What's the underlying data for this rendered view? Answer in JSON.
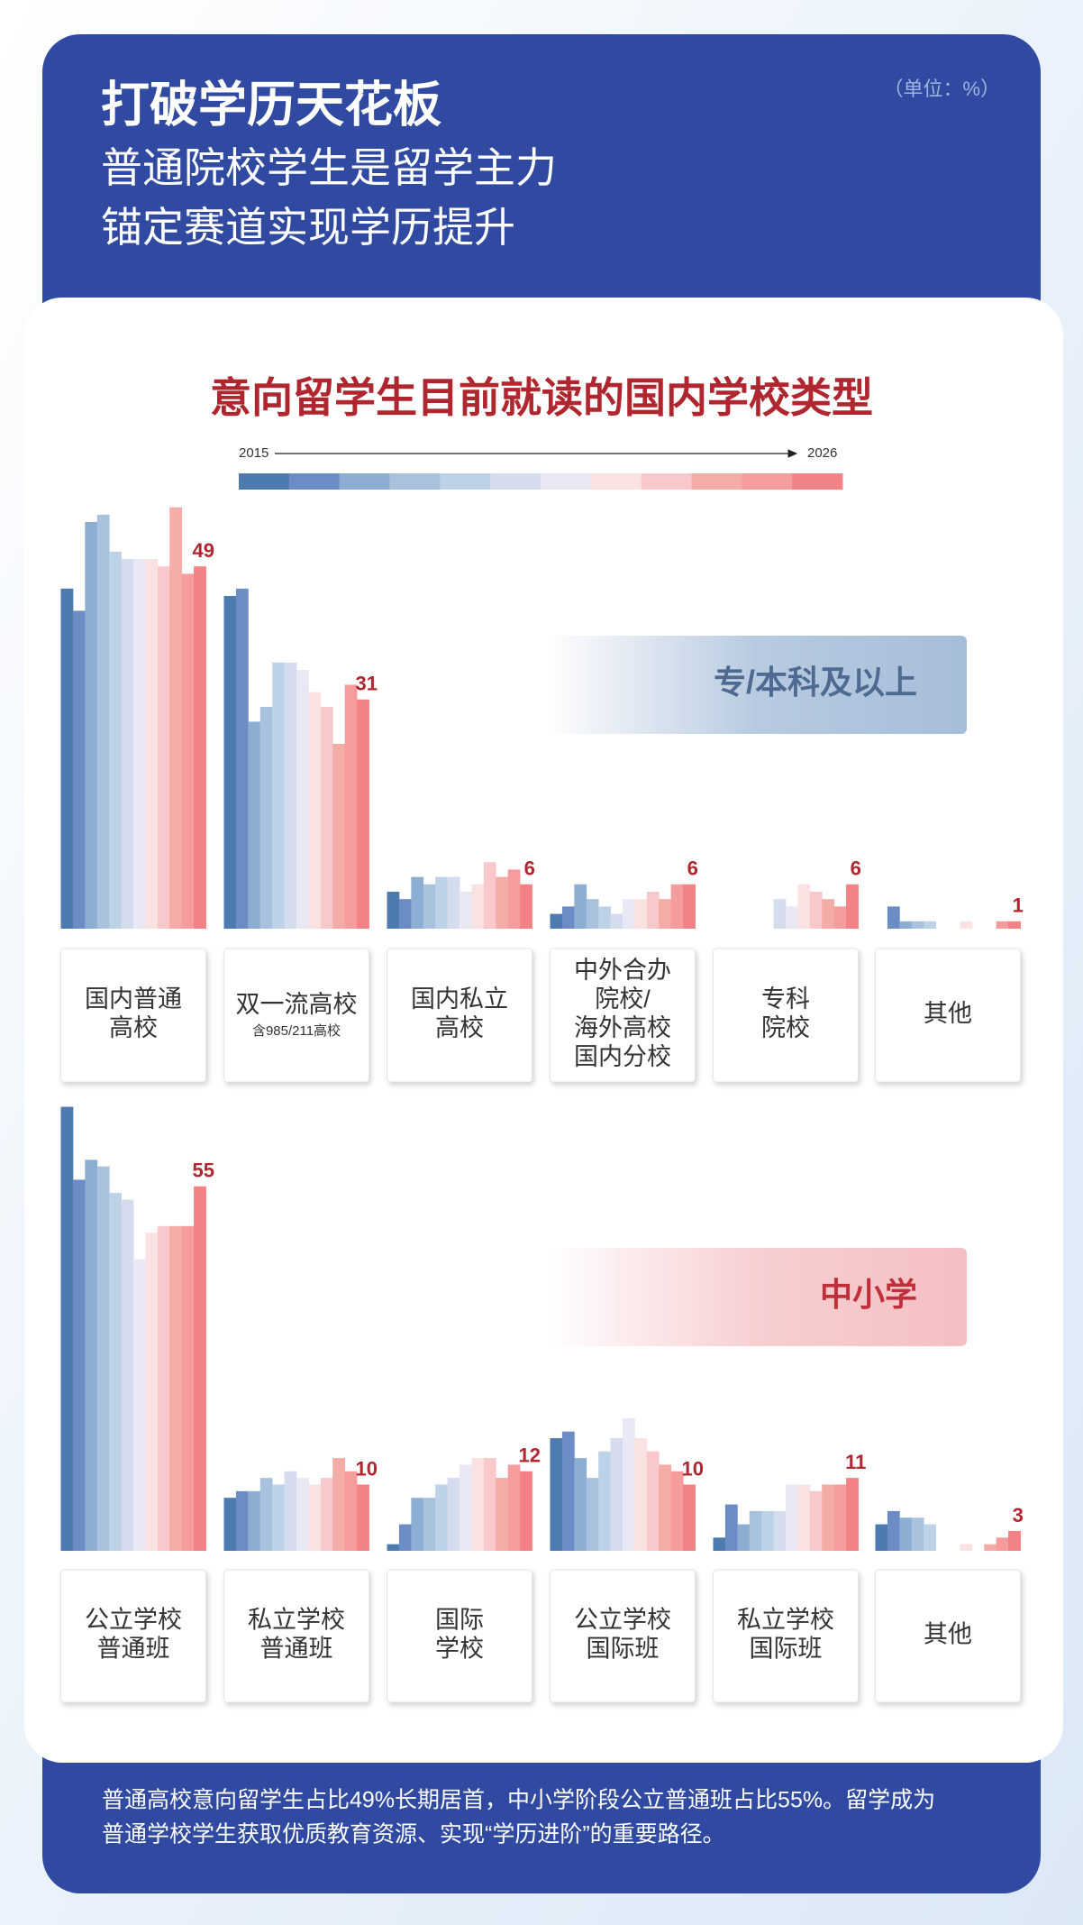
{
  "header": {
    "title": "打破学历天花板",
    "subtitle": [
      "普通院校学生是留学主力",
      "锚定赛道实现学历提升"
    ],
    "unit": "（单位：%）"
  },
  "chart_title": "意向留学生目前就读的国内学校类型",
  "legend": {
    "start": "2015",
    "end": "2026",
    "colors": [
      "#4d7bb0",
      "#6b8cc4",
      "#8daed3",
      "#a8c2de",
      "#bed2e7",
      "#d5dcee",
      "#e9e9f5",
      "#fbe2e2",
      "#f9c8cb",
      "#f3aca6",
      "#f59c9c",
      "#f28283"
    ]
  },
  "chart_data": [
    {
      "type": "bar",
      "group": "专/本科及以上",
      "categories": [
        {
          "lines": [
            "国内普通",
            "高校"
          ]
        },
        {
          "lines": [
            "双一流高校"
          ],
          "note": "含985/211高校"
        },
        {
          "lines": [
            "国内私立",
            "高校"
          ]
        },
        {
          "lines": [
            "中外合办",
            "院校/",
            "海外高校",
            "国内分校"
          ]
        },
        {
          "lines": [
            "专科",
            "院校"
          ]
        },
        {
          "lines": [
            "其他"
          ]
        }
      ],
      "values": [
        [
          46,
          43,
          55,
          56,
          51,
          50,
          50,
          50,
          49,
          57,
          48,
          49
        ],
        [
          45,
          46,
          28,
          30,
          36,
          36,
          35,
          32,
          30,
          25,
          33,
          31
        ],
        [
          5,
          4,
          7,
          6,
          7,
          7,
          5,
          6,
          9,
          7,
          8,
          6
        ],
        [
          2,
          3,
          6,
          4,
          3,
          2,
          4,
          4,
          5,
          4,
          6,
          6
        ],
        [
          null,
          null,
          null,
          null,
          null,
          4,
          3,
          6,
          5,
          4,
          3,
          6
        ],
        [
          0,
          3,
          1,
          1,
          1,
          0,
          0,
          1,
          0,
          0,
          1,
          1
        ]
      ]
    },
    {
      "type": "bar",
      "group": "中小学",
      "categories": [
        {
          "lines": [
            "公立学校",
            "普通班"
          ]
        },
        {
          "lines": [
            "私立学校",
            "普通班"
          ]
        },
        {
          "lines": [
            "国际",
            "学校"
          ]
        },
        {
          "lines": [
            "公立学校",
            "国际班"
          ]
        },
        {
          "lines": [
            "私立学校",
            "国际班"
          ]
        },
        {
          "lines": [
            "其他"
          ]
        }
      ],
      "values": [
        [
          67,
          56,
          59,
          58,
          54,
          53,
          44,
          48,
          49,
          49,
          49,
          55
        ],
        [
          8,
          9,
          9,
          11,
          10,
          12,
          11,
          10,
          11,
          14,
          12,
          10
        ],
        [
          1,
          4,
          8,
          8,
          10,
          11,
          13,
          14,
          14,
          11,
          13,
          12
        ],
        [
          17,
          18,
          14,
          11,
          15,
          17,
          20,
          17,
          15,
          13,
          12,
          10
        ],
        [
          2,
          7,
          4,
          6,
          6,
          6,
          10,
          10,
          9,
          10,
          10,
          11
        ],
        [
          4,
          6,
          5,
          5,
          4,
          0,
          0,
          1,
          0,
          1,
          2,
          3
        ]
      ]
    }
  ],
  "footer": [
    "普通高校意向留学生占比49%长期居首，中小学阶段公立普通班占比55%。留学成为",
    "普通学校学生获取优质教育资源、实现“学历进阶”的重要路径。"
  ]
}
